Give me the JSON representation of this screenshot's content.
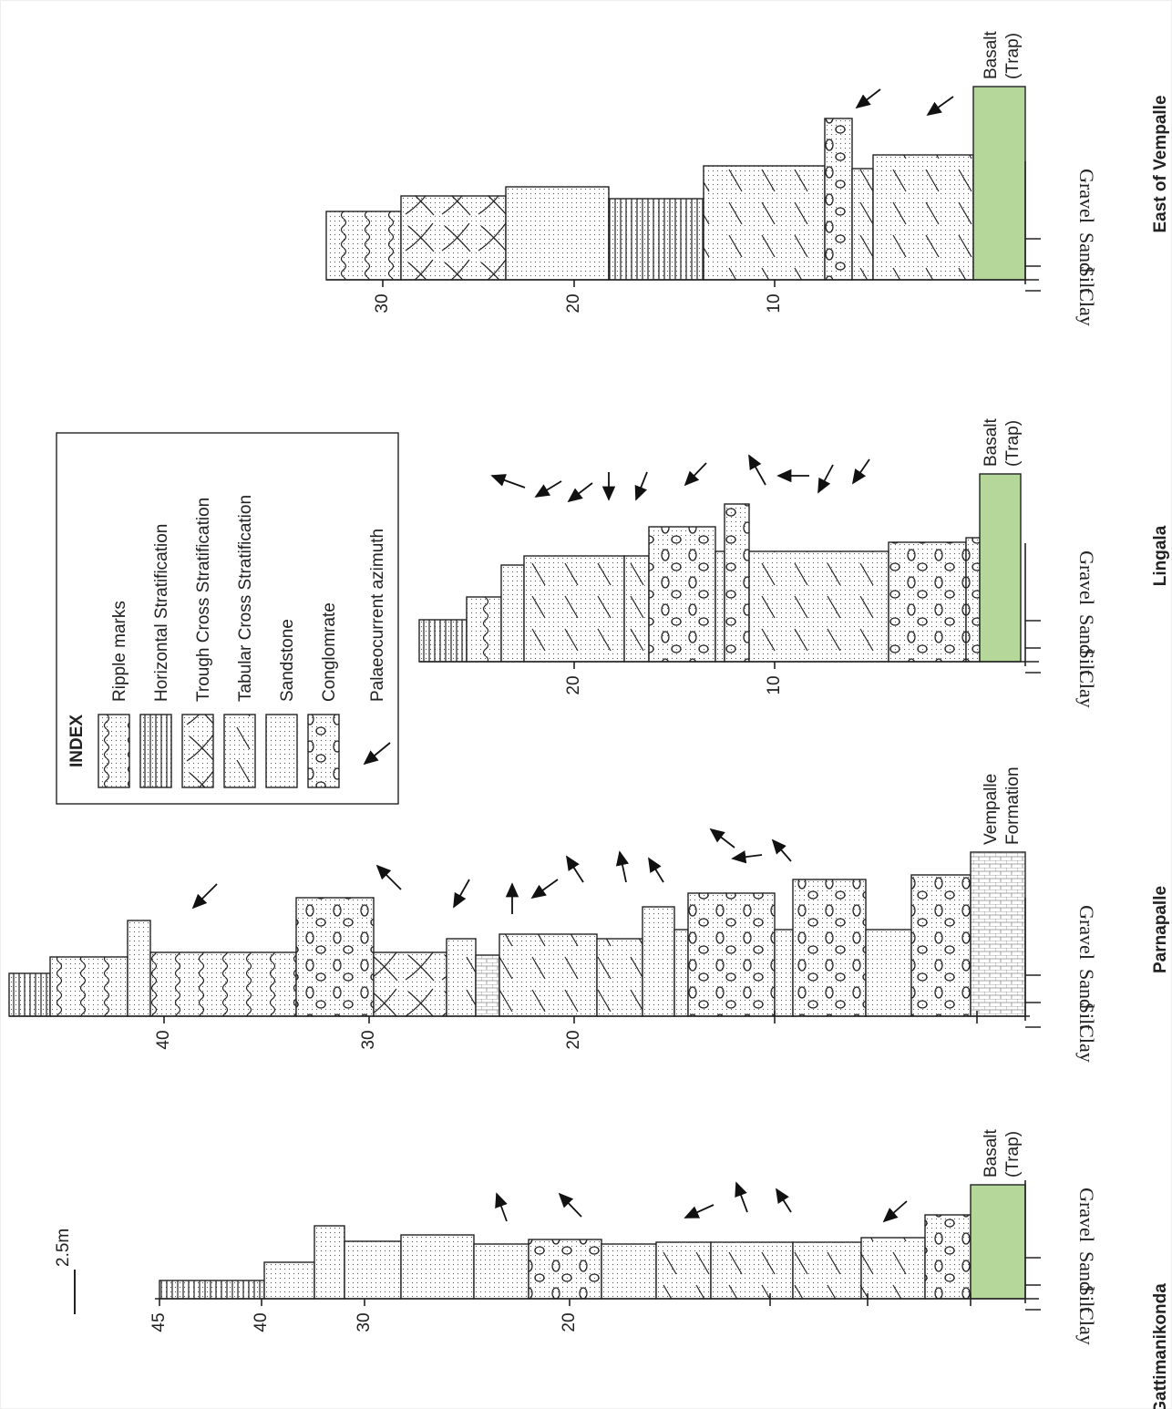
{
  "scale_bar": "2.5m",
  "legend": {
    "title": "INDEX",
    "items": [
      "Ripple marks",
      "Horizontal Stratification",
      "Trough Cross Stratification",
      "Tabular Cross Stratification",
      "Sandstone",
      "Conglomrate",
      "Palaeocurrent azimuth"
    ]
  },
  "sections": [
    {
      "name": "Gattimanikonda",
      "base": [
        "Basalt",
        "(Trap)"
      ],
      "grain_sizes": [
        "Clay",
        "Silt",
        "Sand",
        "Gravel"
      ],
      "ticks": [
        "45",
        "40",
        "30",
        "20"
      ]
    },
    {
      "name": "Parnapalle",
      "base": [
        "Vempalle",
        "Formation"
      ],
      "grain_sizes": [
        "Clay",
        "Silt",
        "Sand",
        "Gravel"
      ],
      "ticks": [
        "40",
        "30",
        "20"
      ]
    },
    {
      "name": "Lingala",
      "base": [
        "Basalt",
        "(Trap)"
      ],
      "grain_sizes": [
        "Clay",
        "Silt",
        "Sand",
        "Gravel"
      ],
      "ticks": [
        "20",
        "10"
      ]
    },
    {
      "name": "East of Vempalle",
      "base": [
        "Basalt",
        "(Trap)"
      ],
      "grain_sizes": [
        "Clay",
        "Silt",
        "Sand",
        "Gravel"
      ],
      "ticks": [
        "30",
        "20",
        "10"
      ]
    }
  ]
}
